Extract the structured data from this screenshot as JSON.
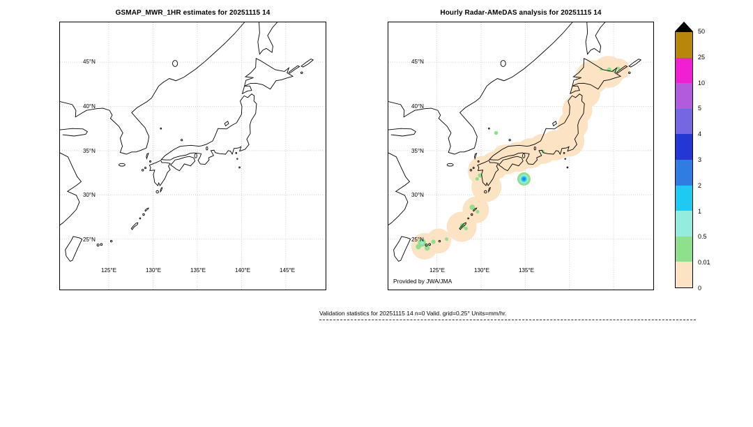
{
  "panels": {
    "left": {
      "title": "GSMAP_MWR_1HR estimates for 20251115 14",
      "lat_labels": [
        "45°N",
        "40°N",
        "35°N",
        "30°N",
        "25°N"
      ],
      "lon_labels": [
        "125°E",
        "130°E",
        "135°E",
        "140°E",
        "145°E"
      ]
    },
    "right": {
      "title": "Hourly Radar-AMeDAS analysis for 20251115 14",
      "lat_labels": [
        "45°N",
        "40°N",
        "35°N",
        "30°N",
        "25°N"
      ],
      "lon_labels": [
        "125°E",
        "130°E",
        "135°E"
      ],
      "credit": "Provided by JWA/JMA"
    }
  },
  "colorbar": {
    "labels": [
      "50",
      "25",
      "10",
      "5",
      "4",
      "3",
      "2",
      "1",
      "0.5",
      "0.01",
      "0"
    ],
    "bands": [
      {
        "range": "25-50",
        "color": "#b8860b"
      },
      {
        "range": "10-25",
        "color": "#f11fd3"
      },
      {
        "range": "5-10",
        "color": "#b35bdd"
      },
      {
        "range": "4-5",
        "color": "#7566e2"
      },
      {
        "range": "3-4",
        "color": "#2436d3"
      },
      {
        "range": "2-3",
        "color": "#2f7de2"
      },
      {
        "range": "1-2",
        "color": "#1ec9f2"
      },
      {
        "range": "0.5-1",
        "color": "#93ecdd"
      },
      {
        "range": "0.01-0.5",
        "color": "#8fe08d"
      },
      {
        "range": "0-0.01",
        "color": "#fce3c3"
      }
    ]
  },
  "map": {
    "precip_overlay": {
      "cells": [
        {
          "lon": 123.6,
          "lat": 24.2,
          "r": 1.5,
          "level": "0-0.01"
        },
        {
          "lon": 125.2,
          "lat": 24.8,
          "r": 1.4,
          "level": "0-0.01"
        },
        {
          "lon": 127.8,
          "lat": 26.4,
          "r": 1.7,
          "level": "0-0.01"
        },
        {
          "lon": 129.4,
          "lat": 28.3,
          "r": 1.5,
          "level": "0-0.01"
        },
        {
          "lon": 130.6,
          "lat": 30.9,
          "r": 1.7,
          "level": "0-0.01"
        },
        {
          "lon": 130.2,
          "lat": 32.7,
          "r": 1.7,
          "level": "0-0.01"
        },
        {
          "lon": 131.5,
          "lat": 33.3,
          "r": 1.6,
          "level": "0-0.01"
        },
        {
          "lon": 132.8,
          "lat": 34.0,
          "r": 1.7,
          "level": "0-0.01"
        },
        {
          "lon": 134.2,
          "lat": 34.3,
          "r": 1.7,
          "level": "0-0.01"
        },
        {
          "lon": 135.6,
          "lat": 34.7,
          "r": 1.7,
          "level": "0-0.01"
        },
        {
          "lon": 137.0,
          "lat": 35.2,
          "r": 1.7,
          "level": "0-0.01"
        },
        {
          "lon": 138.4,
          "lat": 35.6,
          "r": 1.7,
          "level": "0-0.01"
        },
        {
          "lon": 139.9,
          "lat": 36.1,
          "r": 1.8,
          "level": "0-0.01"
        },
        {
          "lon": 140.4,
          "lat": 37.9,
          "r": 1.7,
          "level": "0-0.01"
        },
        {
          "lon": 140.9,
          "lat": 39.6,
          "r": 1.7,
          "level": "0-0.01"
        },
        {
          "lon": 141.8,
          "lat": 41.5,
          "r": 1.7,
          "level": "0-0.01"
        },
        {
          "lon": 142.6,
          "lat": 43.3,
          "r": 1.9,
          "level": "0-0.01"
        },
        {
          "lon": 144.4,
          "lat": 43.9,
          "r": 1.8,
          "level": "0-0.01"
        },
        {
          "lon": 145.6,
          "lat": 44.2,
          "r": 1.2,
          "level": "0-0.01"
        },
        {
          "lon": 123.3,
          "lat": 24.6,
          "r": 0.45,
          "level": "0.01-0.5"
        },
        {
          "lon": 122.9,
          "lat": 24.15,
          "r": 0.3,
          "level": "0.01-0.5"
        },
        {
          "lon": 123.9,
          "lat": 24.0,
          "r": 0.3,
          "level": "0.01-0.5"
        },
        {
          "lon": 124.6,
          "lat": 24.7,
          "r": 0.25,
          "level": "0.01-0.5"
        },
        {
          "lon": 126.1,
          "lat": 25.0,
          "r": 0.2,
          "level": "0.01-0.5"
        },
        {
          "lon": 127.9,
          "lat": 26.5,
          "r": 0.3,
          "level": "0.01-0.5"
        },
        {
          "lon": 128.3,
          "lat": 26.2,
          "r": 0.2,
          "level": "0.01-0.5"
        },
        {
          "lon": 129.0,
          "lat": 28.6,
          "r": 0.3,
          "level": "0.01-0.5"
        },
        {
          "lon": 129.6,
          "lat": 28.1,
          "r": 0.2,
          "level": "0.01-0.5"
        },
        {
          "lon": 129.9,
          "lat": 32.2,
          "r": 0.25,
          "level": "0.01-0.5"
        },
        {
          "lon": 129.55,
          "lat": 31.8,
          "r": 0.2,
          "level": "0.01-0.5"
        },
        {
          "lon": 131.7,
          "lat": 37.0,
          "r": 0.22,
          "level": "0.01-0.5"
        },
        {
          "lon": 137.0,
          "lat": 34.9,
          "r": 0.18,
          "level": "0.01-0.5"
        },
        {
          "lon": 143.6,
          "lat": 44.2,
          "r": 0.15,
          "level": "0.01-0.5"
        },
        {
          "lon": 144.5,
          "lat": 44.15,
          "r": 0.25,
          "level": "0.01-0.5"
        },
        {
          "lon": 145.05,
          "lat": 44.0,
          "r": 0.2,
          "level": "0.01-0.5"
        },
        {
          "lon": 145.55,
          "lat": 44.3,
          "r": 0.18,
          "level": "0.01-0.5"
        },
        {
          "lon": 134.85,
          "lat": 31.8,
          "r": 0.75,
          "level": "0.01-0.5"
        },
        {
          "lon": 134.85,
          "lat": 31.8,
          "r": 0.5,
          "level": "0.5-1"
        },
        {
          "lon": 123.3,
          "lat": 24.6,
          "r": 0.22,
          "level": "0.5-1"
        },
        {
          "lon": 134.85,
          "lat": 31.8,
          "r": 0.33,
          "level": "1-2"
        },
        {
          "lon": 134.85,
          "lat": 31.8,
          "r": 0.17,
          "level": "2-3"
        }
      ]
    }
  },
  "footer": {
    "stats_line": "Validation statistics for 20251115 14  n=0 Valid. grid=0.25° Units=mm/hr."
  }
}
